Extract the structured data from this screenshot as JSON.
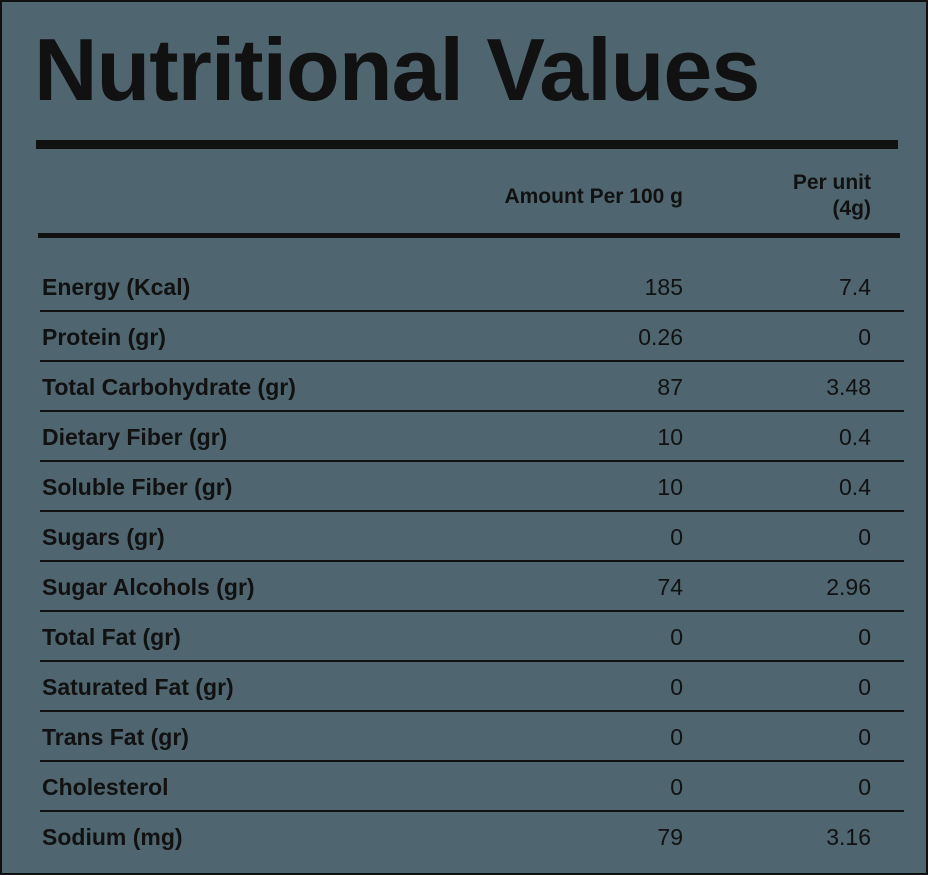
{
  "title": "Nutritional Values",
  "columns": {
    "amount": "Amount Per 100 g",
    "per_unit_line1": "Per unit",
    "per_unit_line2": "(4g)"
  },
  "rows": [
    {
      "name": "Energy (Kcal)",
      "per_100g": "185",
      "per_unit": "7.4"
    },
    {
      "name": "Protein (gr)",
      "per_100g": "0.26",
      "per_unit": "0"
    },
    {
      "name": "Total Carbohydrate (gr)",
      "per_100g": "87",
      "per_unit": "3.48"
    },
    {
      "name": "Dietary Fiber (gr)",
      "per_100g": "10",
      "per_unit": "0.4"
    },
    {
      "name": "Soluble Fiber (gr)",
      "per_100g": "10",
      "per_unit": "0.4"
    },
    {
      "name": "Sugars (gr)",
      "per_100g": "0",
      "per_unit": "0"
    },
    {
      "name": "Sugar Alcohols (gr)",
      "per_100g": "74",
      "per_unit": "2.96"
    },
    {
      "name": "Total Fat (gr)",
      "per_100g": "0",
      "per_unit": "0"
    },
    {
      "name": "Saturated Fat (gr)",
      "per_100g": "0",
      "per_unit": "0"
    },
    {
      "name": "Trans Fat (gr)",
      "per_100g": "0",
      "per_unit": "0"
    },
    {
      "name": "Cholesterol",
      "per_100g": "0",
      "per_unit": "0"
    },
    {
      "name": "Sodium (mg)",
      "per_100g": "79",
      "per_unit": "3.16"
    }
  ],
  "colors": {
    "background": "#4f6670",
    "ink": "#111111"
  }
}
